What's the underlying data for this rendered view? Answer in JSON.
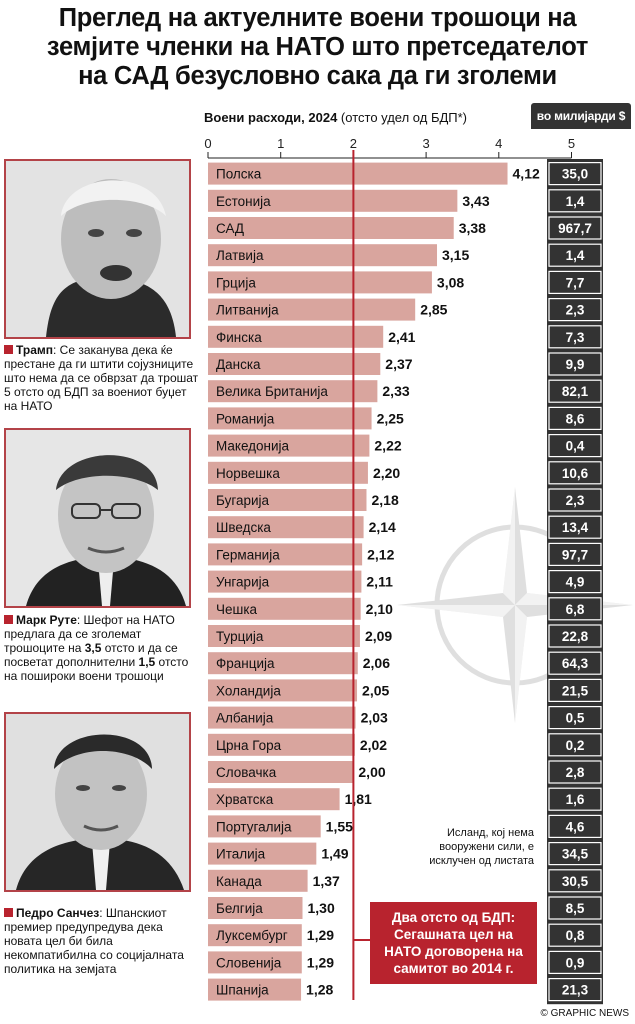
{
  "title": {
    "line1": "Преглед на актуелните воени трошоци на",
    "line2": "земјите членки на НАТО што претседателот",
    "line3": "на САД безусловно сака да ги зголеми"
  },
  "chart_header": {
    "bold": "Воени расходи, 2024",
    "sub": " (отсто удел од БДП*)"
  },
  "money_header": "во милијарди $",
  "people": [
    {
      "name": "Трамп",
      "text": ": Се заканува дека ќе престане да ги штити сојузниците што нема да се обврзат да трошат 5 отсто од БДП за воениот буџет на НАТО"
    },
    {
      "name": "Марк Руте",
      "text_a": ": Шефот на НАТО предлага да се зголемат трошоците на ",
      "v1": "3,5",
      "text_b": " отсто и да се посветат дополнителни ",
      "v2": "1,5",
      "text_c": " отсто на пошироки воени трошоци"
    },
    {
      "name": "Педро Санчез",
      "text": ": Шпанскиот премиер предупредува дека новата цел би била некомпатибилна со социјалната политика на земјата"
    }
  ],
  "iceland_note": "Исланд, кој нема вооружени сили, е исклучен од листата",
  "target_box": {
    "line1": "Два отсто од БДП:",
    "line2": "Сегашната цел на",
    "line3": "НАТО договорена на",
    "line4": "самитот во 2014 г."
  },
  "credit": "© GRAPHIC NEWS",
  "colors": {
    "bar": "#d9a59e",
    "accent_red": "#b8232e",
    "money_box": "#333333"
  },
  "chart_data": {
    "type": "bar",
    "orientation": "horizontal",
    "title": "Воени расходи, 2024",
    "xlabel": "отсто удел од БДП*",
    "xlim": [
      0,
      5
    ],
    "xticks": [
      "0",
      "1",
      "2",
      "3",
      "4",
      "5"
    ],
    "reference_line": 2,
    "categories": [
      "Полска",
      "Естонија",
      "САД",
      "Латвија",
      "Грција",
      "Литванија",
      "Финска",
      "Данска",
      "Велика Британија",
      "Романија",
      "Македонија",
      "Норвешка",
      "Бугарија",
      "Шведска",
      "Германија",
      "Унгарија",
      "Чешка",
      "Турција",
      "Франција",
      "Холандија",
      "Албанија",
      "Црна Гора",
      "Словачка",
      "Хрватска",
      "Португалија",
      "Италија",
      "Канада",
      "Белгија",
      "Луксембург",
      "Словенија",
      "Шпанија"
    ],
    "values": [
      4.12,
      3.43,
      3.38,
      3.15,
      3.08,
      2.85,
      2.41,
      2.37,
      2.33,
      2.25,
      2.22,
      2.2,
      2.18,
      2.14,
      2.12,
      2.11,
      2.1,
      2.09,
      2.06,
      2.05,
      2.03,
      2.02,
      2.0,
      1.81,
      1.55,
      1.49,
      1.37,
      1.3,
      1.29,
      1.29,
      1.28
    ],
    "value_labels": [
      "4,12",
      "3,43",
      "3,38",
      "3,15",
      "3,08",
      "2,85",
      "2,41",
      "2,37",
      "2,33",
      "2,25",
      "2,22",
      "2,20",
      "2,18",
      "2,14",
      "2,12",
      "2,11",
      "2,10",
      "2,09",
      "2,06",
      "2,05",
      "2,03",
      "2,02",
      "2,00",
      "1,81",
      "1,55",
      "1,49",
      "1,37",
      "1,30",
      "1,29",
      "1,29",
      "1,28"
    ],
    "spending_billions": [
      35.0,
      1.4,
      967.7,
      1.4,
      7.7,
      2.3,
      7.3,
      9.9,
      82.1,
      8.6,
      0.4,
      10.6,
      2.3,
      13.4,
      97.7,
      4.9,
      6.8,
      22.8,
      64.3,
      21.5,
      0.5,
      0.2,
      2.8,
      1.6,
      4.6,
      34.5,
      30.5,
      8.5,
      0.8,
      0.9,
      21.3
    ],
    "spending_labels": [
      "35,0",
      "1,4",
      "967,7",
      "1,4",
      "7,7",
      "2,3",
      "7,3",
      "9,9",
      "82,1",
      "8,6",
      "0,4",
      "10,6",
      "2,3",
      "13,4",
      "97,7",
      "4,9",
      "6,8",
      "22,8",
      "64,3",
      "21,5",
      "0,5",
      "0,2",
      "2,8",
      "1,6",
      "4,6",
      "34,5",
      "30,5",
      "8,5",
      "0,8",
      "0,9",
      "21,3"
    ]
  }
}
